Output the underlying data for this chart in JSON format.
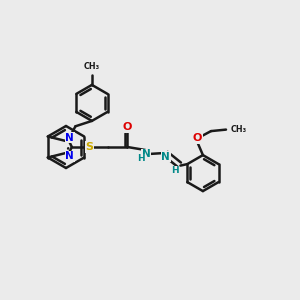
{
  "bg": "#ebebeb",
  "lc": "#1a1a1a",
  "lw": 1.8,
  "N_blue": "#0000ee",
  "S_yellow": "#ccaa00",
  "O_red": "#dd0000",
  "N_teal": "#008888",
  "H_teal": "#008888",
  "xlim": [
    0,
    10
  ],
  "ylim": [
    0,
    10
  ]
}
